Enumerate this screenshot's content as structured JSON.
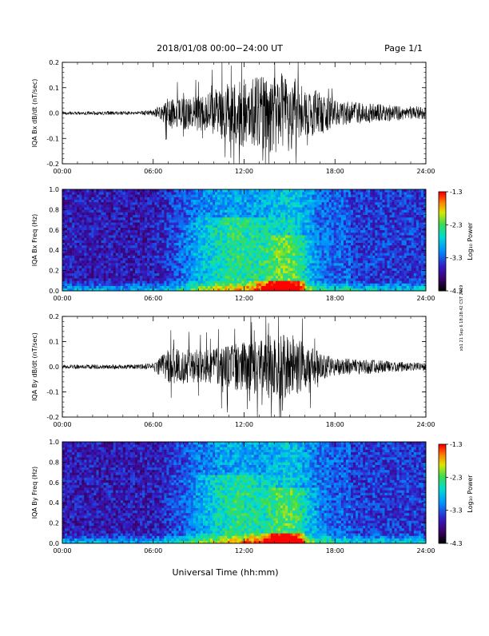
{
  "header": {
    "title": "2018/01/08  00:00−24:00 UT",
    "page": "Page 1/1"
  },
  "x_axis": {
    "ticks": [
      "00:00",
      "06:00",
      "12:00",
      "18:00",
      "24:00"
    ],
    "label": "Universal Time (hh:mm)"
  },
  "side_note": "xb1 21 Sep 6 18:28:42 CST 2019",
  "colorbar": {
    "title": "Log₁₀ Power",
    "ticks": [
      "-1.3",
      "-2.3",
      "-3.3",
      "-4.3"
    ],
    "range": [
      -4.3,
      -1.3
    ]
  },
  "colors": {
    "trace": "#000000",
    "axis": "#000000",
    "background": "#ffffff"
  },
  "chart_data": [
    {
      "type": "line",
      "ylabel": "IQA Bx dB/dt (nT/sec)",
      "x_range_hours": [
        0,
        24
      ],
      "ylim": [
        -0.2,
        0.2
      ],
      "yticks": [
        "0.2",
        "0.1",
        "0.0",
        "-0.1",
        "-0.2"
      ],
      "envelope": {
        "x_hours": [
          0,
          3,
          5,
          6,
          7,
          9,
          10,
          11,
          12,
          13,
          14,
          15,
          16,
          17,
          18,
          20,
          22,
          24
        ],
        "amplitude": [
          0.006,
          0.008,
          0.007,
          0.012,
          0.06,
          0.07,
          0.09,
          0.12,
          0.14,
          0.14,
          0.16,
          0.16,
          0.1,
          0.09,
          0.05,
          0.04,
          0.03,
          0.025
        ]
      }
    },
    {
      "type": "heatmap",
      "ylabel": "IQA Bx Freq (Hz)",
      "x_range_hours": [
        0,
        24
      ],
      "ylim": [
        0.0,
        1.0
      ],
      "yticks": [
        "1.0",
        "0.8",
        "0.6",
        "0.4",
        "0.2",
        "0.0"
      ],
      "value_range": [
        -4.3,
        -1.3
      ]
    },
    {
      "type": "line",
      "ylabel": "IQA By dB/dt (nT/sec)",
      "x_range_hours": [
        0,
        24
      ],
      "ylim": [
        -0.2,
        0.2
      ],
      "yticks": [
        "0.2",
        "0.1",
        "0.0",
        "-0.1",
        "-0.2"
      ],
      "envelope": {
        "x_hours": [
          0,
          3,
          5,
          6,
          7,
          9,
          10,
          11,
          12,
          13,
          14,
          15,
          16,
          17,
          18,
          20,
          22,
          24
        ],
        "amplitude": [
          0.008,
          0.009,
          0.009,
          0.015,
          0.07,
          0.07,
          0.07,
          0.09,
          0.1,
          0.11,
          0.14,
          0.14,
          0.09,
          0.06,
          0.035,
          0.03,
          0.02,
          0.015
        ]
      }
    },
    {
      "type": "heatmap",
      "ylabel": "IQA By Freq (Hz)",
      "x_range_hours": [
        0,
        24
      ],
      "ylim": [
        0.0,
        1.0
      ],
      "yticks": [
        "1.0",
        "0.8",
        "0.6",
        "0.4",
        "0.2",
        "0.0"
      ],
      "value_range": [
        -4.3,
        -1.3
      ]
    }
  ]
}
